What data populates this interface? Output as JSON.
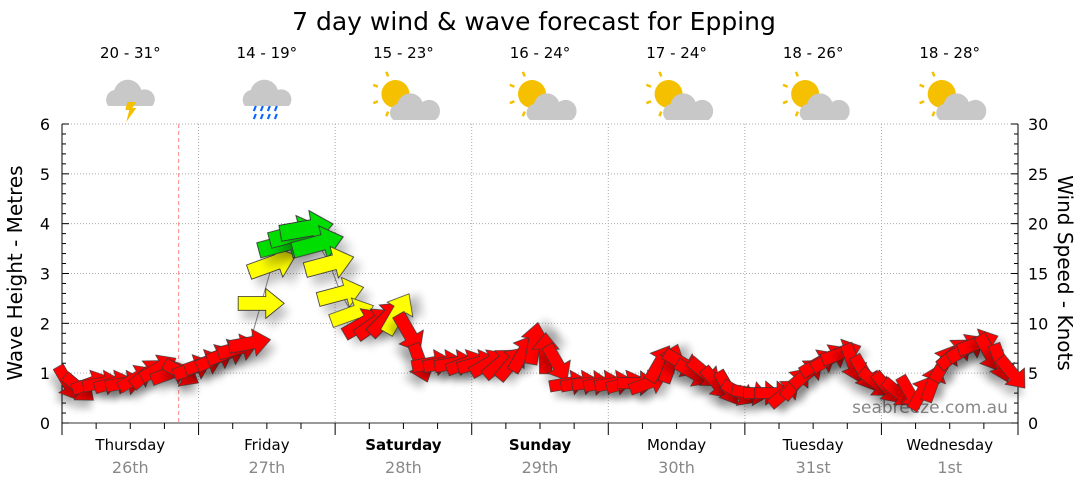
{
  "chart_data": {
    "type": "scatter",
    "title": "7 day wind & wave forecast for Epping",
    "ylabel_left": "Wave Height - Metres",
    "ylabel_right": "Wind Speed - Knots",
    "ylim_left": [
      0,
      6
    ],
    "ylim_right": [
      0,
      30
    ],
    "yticks_left": [
      "0",
      "1",
      "2",
      "3",
      "4",
      "5",
      "6"
    ],
    "yticks_right": [
      "0",
      "5",
      "10",
      "15",
      "20",
      "25",
      "30"
    ],
    "watermark": "seabreeze.com.au",
    "now_hour": 20.5,
    "days": [
      {
        "name": "Thursday",
        "date": "26th",
        "bold": false,
        "temp": "20 - 31°",
        "icon": "thunderstorm-icon"
      },
      {
        "name": "Friday",
        "date": "27th",
        "bold": false,
        "temp": "14 - 19°",
        "icon": "rain-icon"
      },
      {
        "name": "Saturday",
        "date": "28th",
        "bold": true,
        "temp": "15 - 23°",
        "icon": "partly-cloudy-icon"
      },
      {
        "name": "Sunday",
        "date": "29th",
        "bold": true,
        "temp": "16 - 24°",
        "icon": "partly-cloudy-icon"
      },
      {
        "name": "Monday",
        "date": "30th",
        "bold": false,
        "temp": "17 - 24°",
        "icon": "partly-cloudy-icon"
      },
      {
        "name": "Tuesday",
        "date": "31st",
        "bold": false,
        "temp": "18 - 26°",
        "icon": "partly-cloudy-icon"
      },
      {
        "name": "Wednesday",
        "date": "1st",
        "bold": false,
        "temp": "18 - 28°",
        "icon": "partly-cloudy-icon"
      }
    ],
    "colors": {
      "light": "#ff0000",
      "moderate": "#ffff00",
      "strong": "#00dd00"
    },
    "wind_columns": [
      "hour",
      "knots",
      "arrow_rotation_deg"
    ],
    "wind": [
      [
        1,
        4,
        60
      ],
      [
        3,
        3.5,
        40
      ],
      [
        5,
        4,
        -20
      ],
      [
        7,
        4,
        -10
      ],
      [
        9,
        4,
        -15
      ],
      [
        11,
        4,
        -10
      ],
      [
        13,
        4.5,
        -30
      ],
      [
        15,
        5,
        -40
      ],
      [
        17,
        5.5,
        -30
      ],
      [
        19,
        5,
        -20
      ],
      [
        21,
        5,
        30
      ],
      [
        23,
        5.5,
        -20
      ],
      [
        25,
        6,
        -20
      ],
      [
        27,
        6.5,
        -25
      ],
      [
        29,
        7,
        -20
      ],
      [
        31,
        7.5,
        -15
      ],
      [
        33,
        8,
        -10
      ],
      [
        35,
        12,
        0
      ],
      [
        37,
        16,
        -20
      ],
      [
        39,
        18,
        -15
      ],
      [
        41,
        19,
        -15
      ],
      [
        43,
        19.5,
        -10
      ],
      [
        45,
        18,
        -15
      ],
      [
        47,
        16,
        -15
      ],
      [
        49,
        13,
        -15
      ],
      [
        51,
        11,
        -20
      ],
      [
        53,
        10,
        -30
      ],
      [
        55,
        10,
        -35
      ],
      [
        57,
        10.5,
        -45
      ],
      [
        59,
        11,
        -60
      ],
      [
        61,
        9,
        60
      ],
      [
        63,
        6,
        70
      ],
      [
        65,
        6,
        -10
      ],
      [
        67,
        6,
        -10
      ],
      [
        69,
        6,
        -10
      ],
      [
        71,
        6,
        -20
      ],
      [
        73,
        6,
        -15
      ],
      [
        75,
        6,
        -30
      ],
      [
        77,
        6,
        -40
      ],
      [
        79,
        6,
        -50
      ],
      [
        81,
        7,
        -60
      ],
      [
        83,
        8,
        -80
      ],
      [
        85,
        7,
        -90
      ],
      [
        87,
        6,
        60
      ],
      [
        89,
        4,
        -10
      ],
      [
        91,
        4,
        -10
      ],
      [
        93,
        4,
        -5
      ],
      [
        95,
        4,
        -10
      ],
      [
        97,
        4,
        -10
      ],
      [
        99,
        4,
        -15
      ],
      [
        101,
        4,
        0
      ],
      [
        103,
        4,
        -20
      ],
      [
        105,
        6,
        -60
      ],
      [
        107,
        6,
        -70
      ],
      [
        109,
        6,
        30
      ],
      [
        111,
        5,
        30
      ],
      [
        113,
        5,
        40
      ],
      [
        115,
        4,
        50
      ],
      [
        117,
        3.5,
        60
      ],
      [
        119,
        3,
        30
      ],
      [
        121,
        3,
        10
      ],
      [
        123,
        3,
        0
      ],
      [
        125,
        3,
        0
      ],
      [
        127,
        3,
        -40
      ],
      [
        129,
        4,
        -50
      ],
      [
        131,
        5,
        -40
      ],
      [
        133,
        6,
        -30
      ],
      [
        135,
        6.5,
        -30
      ],
      [
        137,
        7,
        -20
      ],
      [
        139,
        6,
        70
      ],
      [
        141,
        5,
        60
      ],
      [
        143,
        4,
        40
      ],
      [
        145,
        3.5,
        50
      ],
      [
        147,
        3,
        40
      ],
      [
        149,
        3,
        60
      ],
      [
        151,
        3,
        -60
      ],
      [
        153,
        4,
        -70
      ],
      [
        155,
        6,
        -60
      ],
      [
        157,
        7,
        -40
      ],
      [
        159,
        7.5,
        -30
      ],
      [
        161,
        8,
        -20
      ],
      [
        163,
        7,
        60
      ],
      [
        165,
        6,
        70
      ],
      [
        167,
        5,
        50
      ]
    ]
  }
}
